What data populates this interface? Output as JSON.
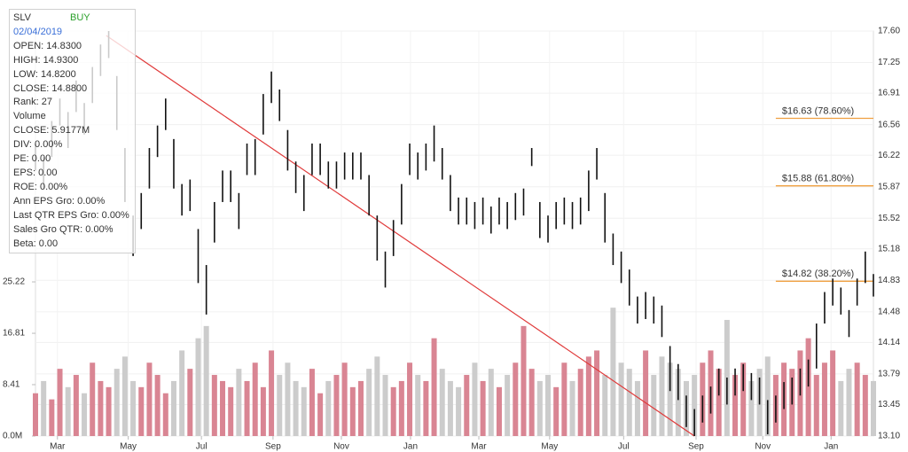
{
  "chart_data": {
    "type": "stock",
    "xlim": [
      0,
      103
    ],
    "xticks": [
      {
        "value": 2.7,
        "label": "Mar"
      },
      {
        "value": 11.4,
        "label": "May"
      },
      {
        "value": 20.4,
        "label": "Jul"
      },
      {
        "value": 29.2,
        "label": "Sep"
      },
      {
        "value": 37.6,
        "label": "Nov"
      },
      {
        "value": 46.1,
        "label": "Jan"
      },
      {
        "value": 54.5,
        "label": "Mar"
      },
      {
        "value": 63.2,
        "label": "May"
      },
      {
        "value": 72.3,
        "label": "Jul"
      },
      {
        "value": 81.2,
        "label": "Sep"
      },
      {
        "value": 89.4,
        "label": "Nov"
      },
      {
        "value": 97.8,
        "label": "Jan"
      }
    ],
    "ylim": [
      13.1,
      17.6
    ],
    "yticks": [
      {
        "value": 17.6,
        "label": "17.60"
      },
      17.25,
      16.91,
      16.56,
      16.22,
      15.87,
      15.52,
      15.18,
      14.83,
      14.48,
      14.14,
      13.79,
      13.45,
      {
        "value": 13.1,
        "label": "13.10"
      }
    ],
    "y2lim": [
      0,
      66.26
    ],
    "y2ticks": [
      {
        "value": 0,
        "label": "0.0M"
      },
      8.41,
      16.81,
      25.22
    ],
    "grid": true,
    "price_color": "#111111",
    "high": [
      16.35,
      16.2,
      16.6,
      16.85,
      16.7,
      17.05,
      16.8,
      17.2,
      17.45,
      17.6,
      17.1,
      16.3,
      15.55,
      15.8,
      16.3,
      16.55,
      16.85,
      16.4,
      15.9,
      15.95,
      15.4,
      15.0,
      15.7,
      16.05,
      16.05,
      15.8,
      16.35,
      16.4,
      16.9,
      17.15,
      16.95,
      16.5,
      16.15,
      16.0,
      16.35,
      16.35,
      16.15,
      16.15,
      16.25,
      16.25,
      16.25,
      16.0,
      15.55,
      15.15,
      15.5,
      15.9,
      16.35,
      16.25,
      16.35,
      16.55,
      16.3,
      16.0,
      15.75,
      15.75,
      15.7,
      15.75,
      15.65,
      15.75,
      15.7,
      15.8,
      15.85,
      16.3,
      15.7,
      15.55,
      15.7,
      15.75,
      15.7,
      15.75,
      16.05,
      16.3,
      15.8,
      15.35,
      15.15,
      14.95,
      14.65,
      14.7,
      14.65,
      14.55,
      14.1,
      13.9,
      13.55,
      13.4,
      13.55,
      13.65,
      13.85,
      13.75,
      13.85,
      13.9,
      13.8,
      13.75,
      13.5,
      13.55,
      13.7,
      13.75,
      13.85,
      13.95,
      14.35,
      14.7,
      14.85,
      14.75,
      14.5,
      14.85,
      15.15,
      14.9
    ],
    "low": [
      16.05,
      15.85,
      16.2,
      16.55,
      16.3,
      16.7,
      16.45,
      16.8,
      17.1,
      17.3,
      16.5,
      15.7,
      15.1,
      15.4,
      15.85,
      16.2,
      16.5,
      15.85,
      15.55,
      15.6,
      14.8,
      14.45,
      15.25,
      15.7,
      15.7,
      15.4,
      16.0,
      16.0,
      16.45,
      16.8,
      16.6,
      16.05,
      15.8,
      15.6,
      16.0,
      16.0,
      15.85,
      15.85,
      15.95,
      15.95,
      15.95,
      15.55,
      15.05,
      14.75,
      15.1,
      15.45,
      16.0,
      15.95,
      16.05,
      16.15,
      15.95,
      15.6,
      15.45,
      15.45,
      15.4,
      15.45,
      15.35,
      15.45,
      15.4,
      15.5,
      15.55,
      16.1,
      15.3,
      15.25,
      15.4,
      15.45,
      15.4,
      15.45,
      15.6,
      15.95,
      15.25,
      15.0,
      14.8,
      14.55,
      14.35,
      14.4,
      14.35,
      14.2,
      13.6,
      13.5,
      13.2,
      13.1,
      13.25,
      13.35,
      13.55,
      13.45,
      13.55,
      13.6,
      13.5,
      13.45,
      13.12,
      13.25,
      13.4,
      13.45,
      13.55,
      13.65,
      13.85,
      14.35,
      14.55,
      14.45,
      14.2,
      14.55,
      14.8,
      14.65
    ],
    "volume": {
      "axis": "y2",
      "up_color": "#d98593",
      "down_color": "#cccccc",
      "values": [
        7,
        9,
        6,
        11,
        8,
        10,
        7,
        12,
        9,
        8,
        11,
        13,
        9,
        8,
        12,
        10,
        7,
        9,
        14,
        11,
        16,
        18,
        10,
        9,
        8,
        11,
        9,
        12,
        8,
        14,
        10,
        12,
        9,
        8,
        11,
        7,
        9,
        10,
        12,
        8,
        9,
        11,
        13,
        10,
        8,
        9,
        12,
        10,
        9,
        16,
        11,
        9,
        8,
        10,
        12,
        9,
        11,
        8,
        10,
        12,
        18,
        11,
        9,
        10,
        8,
        12,
        9,
        11,
        13,
        14,
        10,
        21,
        12,
        11,
        9,
        14,
        10,
        13,
        12,
        11,
        9,
        10,
        12,
        14,
        11,
        19,
        10,
        12,
        9,
        11,
        13,
        10,
        12,
        11,
        14,
        16,
        10,
        12,
        14,
        9,
        11,
        12,
        10,
        9
      ]
    },
    "trendline": {
      "x": [
        8.7,
        81.0
      ],
      "y": [
        17.55,
        13.1
      ],
      "color": "#e03a3a"
    },
    "levels": {
      "color": "#f0a040",
      "x_start": 91,
      "items": [
        {
          "value": 16.63,
          "label": "$16.63 (78.60%)"
        },
        {
          "value": 15.88,
          "label": "$15.88 (61.80%)"
        },
        {
          "value": 14.82,
          "label": "$14.82 (38.20%)"
        }
      ]
    }
  },
  "info": {
    "symbol": "SLV",
    "signal": "BUY",
    "date": "02/04/2019",
    "lines": [
      "OPEN: 14.8300",
      "HIGH: 14.9300",
      "LOW: 14.8200",
      "CLOSE: 14.8800",
      "Rank: 27",
      "Volume",
      "CLOSE: 5.9177M",
      "DIV: 0.00%",
      "PE: 0.00",
      "EPS: 0.00",
      "ROE: 0.00%",
      "Ann EPS Gro: 0.00%",
      "Last QTR EPS Gro: 0.00%",
      "Sales Gro QTR: 0.00%",
      "Beta: 0.00"
    ]
  }
}
